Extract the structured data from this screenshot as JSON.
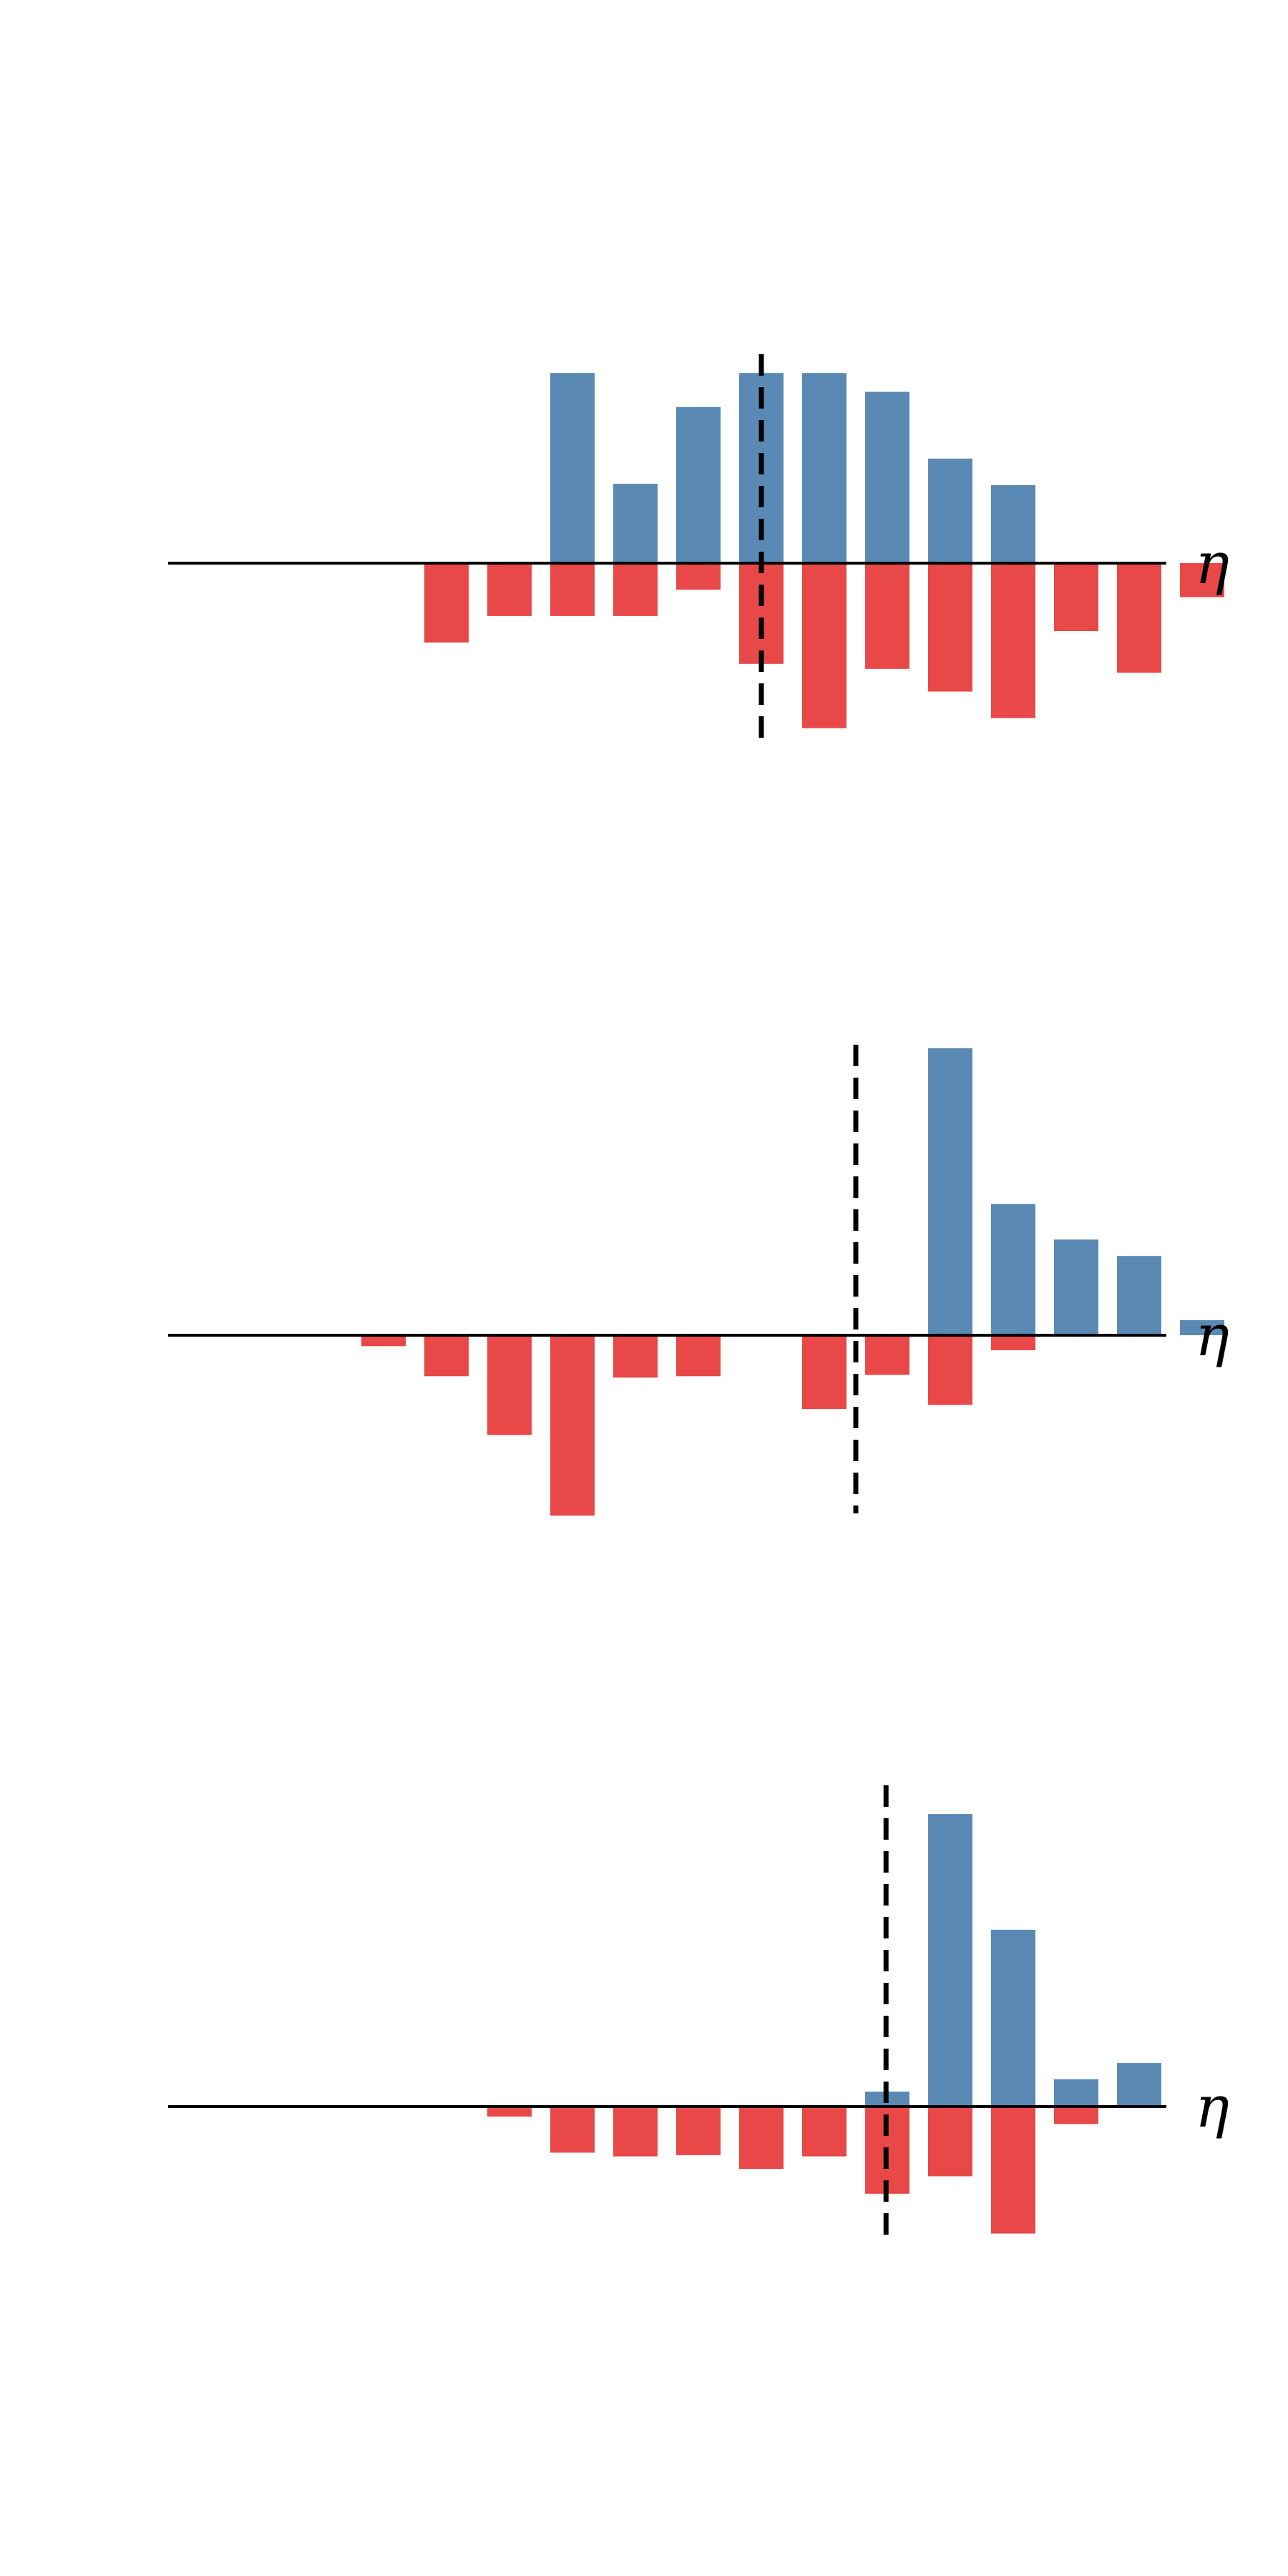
{
  "colors": {
    "positive": "#5a8ab4",
    "negative": "#e84848",
    "axis": "#000000",
    "divider": "#000000"
  },
  "chart_data": [
    {
      "type": "bar",
      "x_axis_label": "η",
      "x": [
        1,
        2,
        3,
        4,
        5,
        6,
        7,
        8,
        9,
        10,
        11,
        12,
        13,
        14,
        15
      ],
      "series": [
        {
          "values": [
            0,
            0,
            0,
            0,
            1.51,
            0.63,
            1.24,
            1.51,
            1.51,
            1.36,
            0.83,
            0.62,
            0,
            0,
            0
          ]
        },
        {
          "values": [
            0,
            0,
            -0.63,
            -0.42,
            -0.42,
            -0.42,
            -0.21,
            -0.8,
            -1.31,
            -0.84,
            -1.02,
            -1.23,
            -0.54,
            -0.87,
            -0.27
          ]
        }
      ],
      "divider_x": 8.0,
      "ylim": [
        -1.45,
        1.7
      ]
    },
    {
      "type": "bar",
      "x_axis_label": "η",
      "x": [
        1,
        2,
        3,
        4,
        5,
        6,
        7,
        8,
        9,
        10,
        11,
        12,
        13,
        14,
        15
      ],
      "series": [
        {
          "values": [
            0,
            0,
            0,
            0,
            0,
            0,
            0,
            0,
            0,
            0,
            2.1,
            0.96,
            0.7,
            0.58,
            0.11
          ]
        },
        {
          "values": [
            0,
            -0.08,
            -0.3,
            -0.73,
            -1.32,
            -0.31,
            -0.3,
            0,
            -0.54,
            -0.29,
            -0.51,
            -0.11,
            0,
            0,
            0
          ]
        }
      ],
      "divider_x": 9.5,
      "ylim": [
        -1.45,
        2.35
      ]
    },
    {
      "type": "bar",
      "x_axis_label": "η",
      "x": [
        1,
        2,
        3,
        4,
        5,
        6,
        7,
        8,
        9,
        10,
        11,
        12,
        13,
        14,
        15
      ],
      "series": [
        {
          "values": [
            0,
            0,
            0,
            0,
            0,
            0,
            0,
            0,
            0,
            0.12,
            2.35,
            1.42,
            0.22,
            0.35,
            0
          ]
        },
        {
          "values": [
            0,
            0,
            0,
            -0.08,
            -0.37,
            -0.4,
            -0.39,
            -0.5,
            -0.4,
            -0.7,
            -0.56,
            -1.02,
            -0.14,
            0,
            0
          ]
        }
      ],
      "divider_x": 9.98,
      "ylim": [
        -1.25,
        2.6
      ]
    }
  ]
}
